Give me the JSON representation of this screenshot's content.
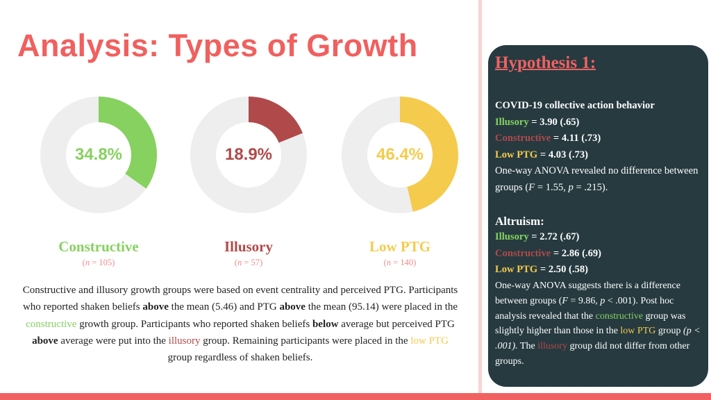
{
  "title": "Analysis: Types of Growth",
  "colors": {
    "constructive": "#86d160",
    "illusory": "#b04a4a",
    "low_ptg": "#f5cb4d",
    "remainder": "#eeeeee",
    "accent": "#f06262",
    "panel": "#263a40"
  },
  "donuts": [
    {
      "label": "Constructive",
      "pct_label": "34.8%",
      "value": 34.8,
      "n_prefix": "(",
      "n_var": "n",
      "n_suffix": " = 105)",
      "color": "#86d160"
    },
    {
      "label": "Illusory",
      "pct_label": "18.9%",
      "value": 18.9,
      "n_prefix": "(",
      "n_var": "n",
      "n_suffix": " = 57)",
      "color": "#b04a4a"
    },
    {
      "label": "Low PTG",
      "pct_label": "46.4%",
      "value": 46.4,
      "n_prefix": "(",
      "n_var": "n",
      "n_suffix": " = 140)",
      "color": "#f5cb4d"
    }
  ],
  "paragraph": {
    "t1": "Constructive and illusory growth groups were based on event centrality and perceived PTG. Participants who reported shaken beliefs ",
    "b1": "above",
    "t2": " the mean (5.46) and PTG ",
    "b2": "above",
    "t3": " the mean (95.14) were placed in the ",
    "c1": "constructive",
    "t4": " growth group. Participants who reported shaken beliefs ",
    "b3": "below",
    "t5": " average but perceived PTG ",
    "b4": "above",
    "t6": " average were put into the ",
    "c2": "illusory",
    "t7": " group. Remaining participants were placed in the ",
    "c3": "low PTG",
    "t8": " group regardless of shaken beliefs."
  },
  "panel": {
    "heading": "Hypothesis 1:",
    "s1": {
      "title": "COVID-19 collective action behavior",
      "rows": [
        {
          "group": "Illusory",
          "stat": " = 3.90 (.65)"
        },
        {
          "group": "Constructive",
          "stat": " = 4.11 (.73)"
        },
        {
          "group": "Low PTG",
          "stat": " = 4.03 (.73)"
        }
      ],
      "note_a": "One-way ANOVA revealed no difference between groups (",
      "F": "F",
      "note_b": " = 1.55, ",
      "p": "p",
      "note_c": " = .215)."
    },
    "s2": {
      "title": "Altruism:",
      "rows": [
        {
          "group": "Illusory",
          "stat": " = 2.72 (.67)"
        },
        {
          "group": "Constructive",
          "stat": " = 2.86 (.69)"
        },
        {
          "group": "Low PTG",
          "stat": " = 2.50 (.58)"
        }
      ],
      "note_a": "One-way ANOVA suggests there is a difference between groups (",
      "F": "F",
      "note_b": " = 9.86, ",
      "p": "p",
      "note_c": " < .001). Post hoc analysis revealed that the ",
      "c1": "constructive",
      "note_d": " group was slightly higher than those in the ",
      "c2": "low PTG",
      "note_e": " group ",
      "note_f": "(p < .001).",
      "note_g": " The ",
      "c3": "illusory",
      "note_h": " group did not differ from other groups."
    }
  }
}
